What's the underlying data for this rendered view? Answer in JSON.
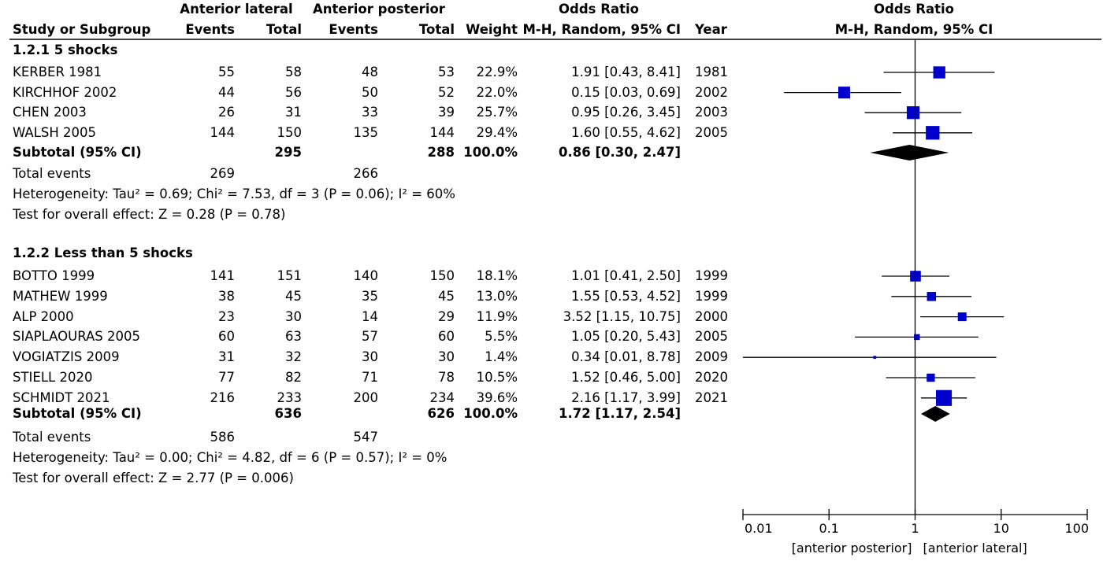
{
  "headers": {
    "group1": "Anterior lateral",
    "group2": "Anterior posterior",
    "or_table": "Odds Ratio",
    "or_plot": "Odds Ratio",
    "study": "Study or Subgroup",
    "events1": "Events",
    "total1": "Total",
    "events2": "Events",
    "total2": "Total",
    "weight": "Weight",
    "method_table": "M-H, Random, 95% CI",
    "year": "Year",
    "method_plot": "M-H, Random, 95% CI"
  },
  "subgroups": [
    {
      "title": "1.2.1 5 shocks",
      "studies": [
        {
          "name": "KERBER 1981",
          "e1": "55",
          "t1": "58",
          "e2": "48",
          "t2": "53",
          "weight": "22.9%",
          "ci_text": "1.91 [0.43, 8.41]",
          "year": "1981",
          "or": 1.91,
          "lo": 0.43,
          "hi": 8.41,
          "w": 22.9
        },
        {
          "name": "KIRCHHOF 2002",
          "e1": "44",
          "t1": "56",
          "e2": "50",
          "t2": "52",
          "weight": "22.0%",
          "ci_text": "0.15 [0.03, 0.69]",
          "year": "2002",
          "or": 0.15,
          "lo": 0.03,
          "hi": 0.69,
          "w": 22.0
        },
        {
          "name": "CHEN 2003",
          "e1": "26",
          "t1": "31",
          "e2": "33",
          "t2": "39",
          "weight": "25.7%",
          "ci_text": "0.95 [0.26, 3.45]",
          "year": "2003",
          "or": 0.95,
          "lo": 0.26,
          "hi": 3.45,
          "w": 25.7
        },
        {
          "name": "WALSH 2005",
          "e1": "144",
          "t1": "150",
          "e2": "135",
          "t2": "144",
          "weight": "29.4%",
          "ci_text": "1.60 [0.55, 4.62]",
          "year": "2005",
          "or": 1.6,
          "lo": 0.55,
          "hi": 4.62,
          "w": 29.4
        }
      ],
      "subtotal": {
        "label": "Subtotal (95% CI)",
        "t1": "295",
        "t2": "288",
        "weight": "100.0%",
        "ci_text": "0.86 [0.30, 2.47]",
        "or": 0.86,
        "lo": 0.3,
        "hi": 2.47
      },
      "total_events": {
        "label": "Total events",
        "e1": "269",
        "e2": "266"
      },
      "heterogeneity": "Heterogeneity: Tau² = 0.69; Chi² = 7.53, df = 3 (P = 0.06); I² = 60%",
      "overall": "Test for overall effect: Z = 0.28 (P = 0.78)"
    },
    {
      "title": "1.2.2 Less than 5 shocks",
      "studies": [
        {
          "name": "BOTTO 1999",
          "e1": "141",
          "t1": "151",
          "e2": "140",
          "t2": "150",
          "weight": "18.1%",
          "ci_text": "1.01 [0.41, 2.50]",
          "year": "1999",
          "or": 1.01,
          "lo": 0.41,
          "hi": 2.5,
          "w": 18.1
        },
        {
          "name": "MATHEW 1999",
          "e1": "38",
          "t1": "45",
          "e2": "35",
          "t2": "45",
          "weight": "13.0%",
          "ci_text": "1.55 [0.53, 4.52]",
          "year": "1999",
          "or": 1.55,
          "lo": 0.53,
          "hi": 4.52,
          "w": 13.0
        },
        {
          "name": "ALP 2000",
          "e1": "23",
          "t1": "30",
          "e2": "14",
          "t2": "29",
          "weight": "11.9%",
          "ci_text": "3.52 [1.15, 10.75]",
          "year": "2000",
          "or": 3.52,
          "lo": 1.15,
          "hi": 10.75,
          "w": 11.9
        },
        {
          "name": "SIAPLAOURAS 2005",
          "e1": "60",
          "t1": "63",
          "e2": "57",
          "t2": "60",
          "weight": "5.5%",
          "ci_text": "1.05 [0.20, 5.43]",
          "year": "2005",
          "or": 1.05,
          "lo": 0.2,
          "hi": 5.43,
          "w": 5.5
        },
        {
          "name": "VOGIATZIS 2009",
          "e1": "31",
          "t1": "32",
          "e2": "30",
          "t2": "30",
          "weight": "1.4%",
          "ci_text": "0.34 [0.01, 8.78]",
          "year": "2009",
          "or": 0.34,
          "lo": 0.01,
          "hi": 8.78,
          "w": 1.4
        },
        {
          "name": "STIELL 2020",
          "e1": "77",
          "t1": "82",
          "e2": "71",
          "t2": "78",
          "weight": "10.5%",
          "ci_text": "1.52 [0.46, 5.00]",
          "year": "2020",
          "or": 1.52,
          "lo": 0.46,
          "hi": 5.0,
          "w": 10.5
        },
        {
          "name": "SCHMIDT 2021",
          "e1": "216",
          "t1": "233",
          "e2": "200",
          "t2": "234",
          "weight": "39.6%",
          "ci_text": "2.16 [1.17, 3.99]",
          "year": "2021",
          "or": 2.16,
          "lo": 1.17,
          "hi": 3.99,
          "w": 39.6
        }
      ],
      "subtotal": {
        "label": "Subtotal (95% CI)",
        "t1": "636",
        "t2": "626",
        "weight": "100.0%",
        "ci_text": "1.72 [1.17, 2.54]",
        "or": 1.72,
        "lo": 1.17,
        "hi": 2.54
      },
      "total_events": {
        "label": "Total events",
        "e1": "586",
        "e2": "547"
      },
      "heterogeneity": "Heterogeneity: Tau² = 0.00; Chi² = 4.82, df = 6 (P = 0.57); I² = 0%",
      "overall": "Test for overall effect: Z = 2.77 (P = 0.006)"
    }
  ],
  "chart_data": {
    "type": "forest",
    "scale": "log",
    "xlim": [
      0.01,
      100
    ],
    "ticks": [
      0.01,
      0.1,
      1,
      10,
      100
    ],
    "tick_labels": [
      "0.01",
      "0.1",
      "1",
      "10",
      "100"
    ],
    "null_value": 1,
    "left_label": "[anterior posterior]",
    "right_label": "[anterior lateral]",
    "marker_color": "#0000cc",
    "line_color": "#000000"
  }
}
